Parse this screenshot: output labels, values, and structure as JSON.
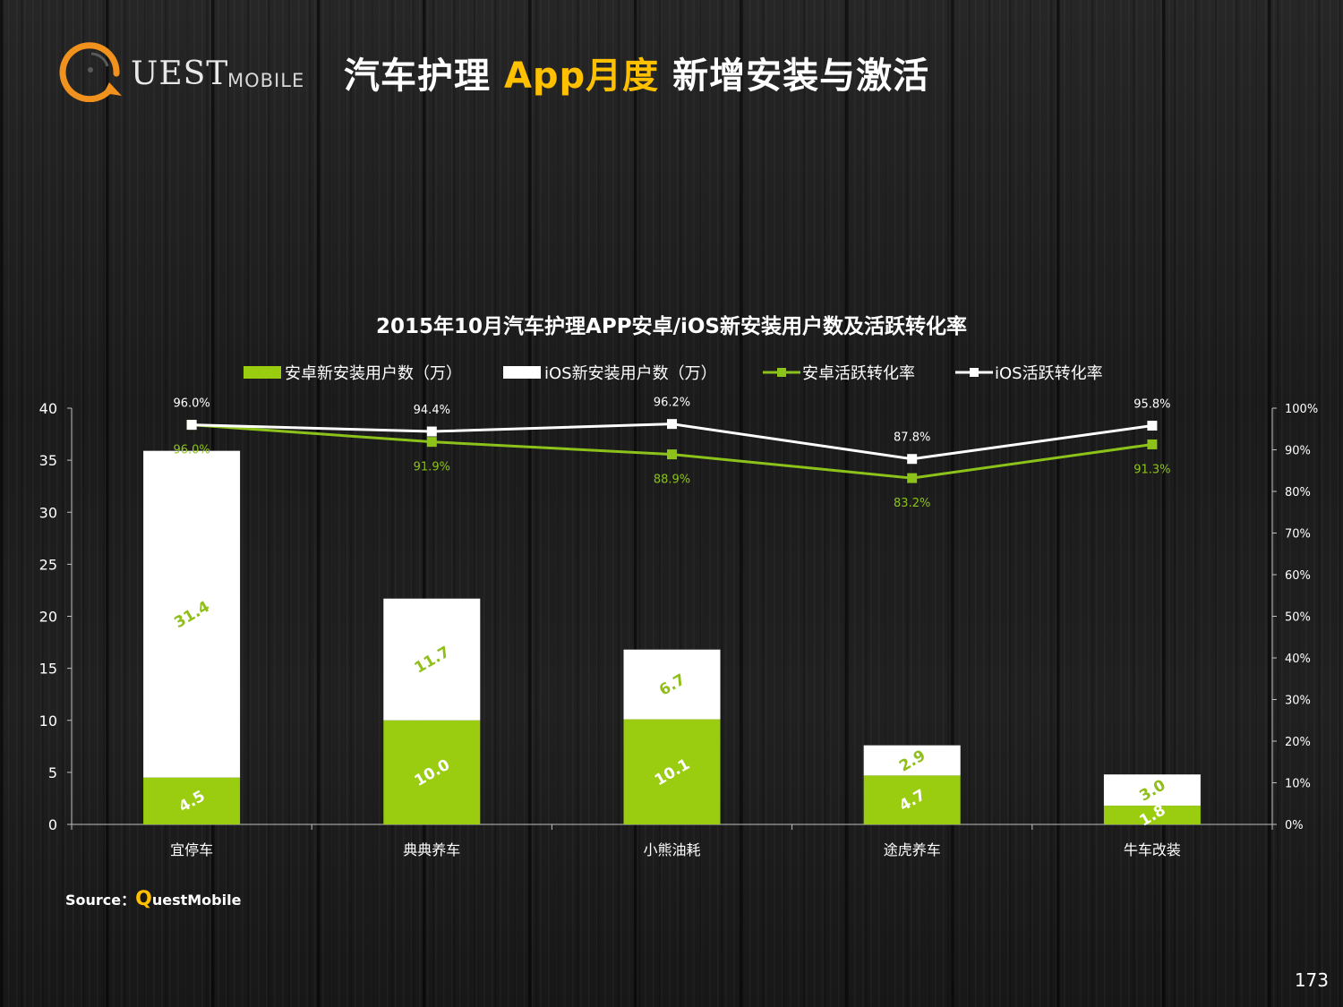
{
  "header": {
    "logo_text": "UEST",
    "logo_sub": "MOBILE",
    "title_part1": "汽车护理 ",
    "title_highlight": "App月度",
    "title_part2": " 新增安装与激活"
  },
  "chart_data": {
    "type": "bar",
    "title": "2015年10月汽车护理APP安卓/iOS新安装用户数及活跃转化率",
    "categories": [
      "宜停车",
      "典典养车",
      "小熊油耗",
      "途虎养车",
      "牛车改装"
    ],
    "series": [
      {
        "name": "安卓新安装用户数（万）",
        "kind": "bar-stacked",
        "axis": "left",
        "color": "#9acd10",
        "label_color": "#ffffff",
        "values": [
          4.5,
          10.0,
          10.1,
          4.7,
          1.8
        ]
      },
      {
        "name": "iOS新安装用户数（万）",
        "kind": "bar-stacked",
        "axis": "left",
        "color": "#ffffff",
        "label_color": "#8fbf18",
        "values": [
          31.4,
          11.7,
          6.7,
          2.9,
          3.0
        ]
      },
      {
        "name": "安卓活跃转化率",
        "kind": "line",
        "axis": "right",
        "color": "#8cc21a",
        "label_color": "#8cc21a",
        "values": [
          96.0,
          91.9,
          88.9,
          83.2,
          91.3
        ],
        "labels": [
          "96.0%",
          "91.9%",
          "88.9%",
          "83.2%",
          "91.3%"
        ]
      },
      {
        "name": "iOS活跃转化率",
        "kind": "line",
        "axis": "right",
        "color": "#ffffff",
        "label_color": "#ffffff",
        "values": [
          96.0,
          94.4,
          96.2,
          87.8,
          95.8
        ],
        "labels": [
          "96.0%",
          "94.4%",
          "96.2%",
          "87.8%",
          "95.8%"
        ]
      }
    ],
    "y_left": {
      "lim": [
        0,
        40
      ],
      "ticks": [
        "0",
        "5",
        "10",
        "15",
        "20",
        "25",
        "30",
        "35",
        "40"
      ]
    },
    "y_right": {
      "lim": [
        0,
        100
      ],
      "ticks": [
        "0%",
        "10%",
        "20%",
        "30%",
        "40%",
        "50%",
        "60%",
        "70%",
        "80%",
        "90%",
        "100%"
      ]
    },
    "legend_position": "top",
    "grid": false
  },
  "footer": {
    "source_prefix": "Source：",
    "source_q": "Q",
    "source_rest": "uestMobile",
    "page_number": "173"
  }
}
